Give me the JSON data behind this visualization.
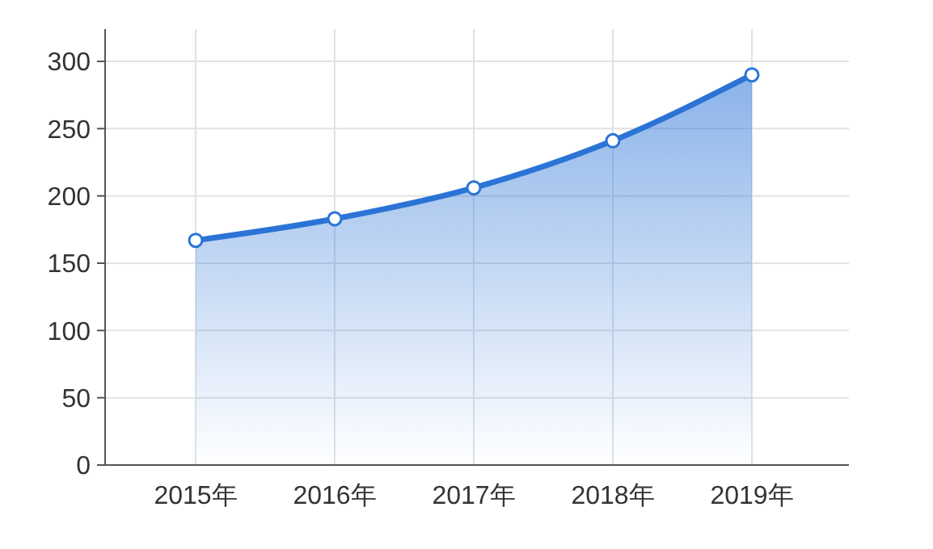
{
  "chart_data": {
    "type": "area",
    "categories": [
      "2015年",
      "2016年",
      "2017年",
      "2018年",
      "2019年"
    ],
    "series": [
      {
        "color": "#2b74d6",
        "values": [
          167,
          183,
          206,
          241,
          290
        ]
      }
    ],
    "ylim": [
      0,
      324
    ],
    "yticks": [
      0,
      50,
      100,
      150,
      200,
      250,
      300
    ],
    "grid": true,
    "marker": "circle"
  }
}
